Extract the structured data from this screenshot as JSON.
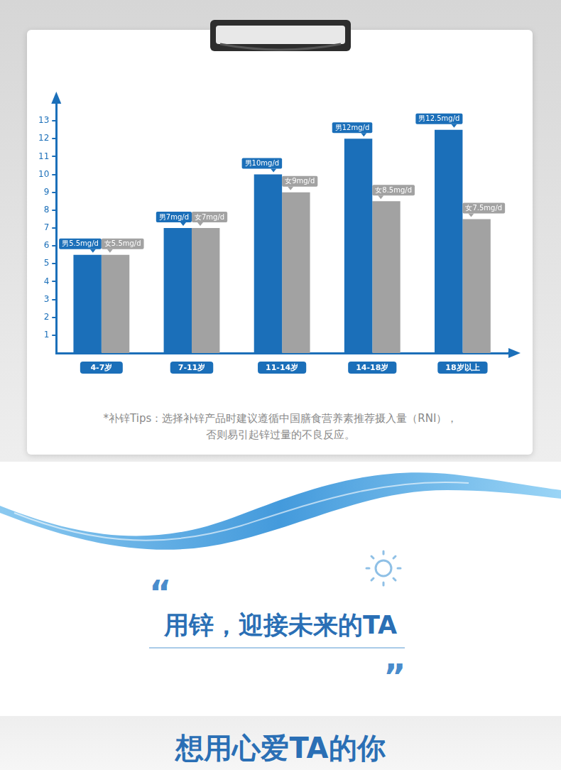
{
  "chart_data": {
    "type": "bar",
    "categories": [
      "4-7岁",
      "7-11岁",
      "11-14岁",
      "14-18岁",
      "18岁以上"
    ],
    "series": [
      {
        "color": "#1b6fb9",
        "values": [
          5.5,
          7,
          10,
          12,
          12.5
        ],
        "value_labels": [
          "男5.5mg/d",
          "男7mg/d",
          "男10mg/d",
          "男12mg/d",
          "男12.5mg/d"
        ]
      },
      {
        "color": "#a2a2a2",
        "values": [
          5.5,
          7,
          9,
          8.5,
          7.5
        ],
        "value_labels": [
          "女5.5mg/d",
          "女7mg/d",
          "女9mg/d",
          "女8.5mg/d",
          "女7.5mg/d"
        ]
      }
    ],
    "ylim": [
      0,
      14
    ],
    "yticks": [
      1,
      2,
      3,
      4,
      5,
      6,
      7,
      8,
      9,
      10,
      11,
      12,
      13
    ],
    "grid": false,
    "data_labels": true
  },
  "tips": [
    "*补锌Tips：选择补锌产品时建议遵循中国膳食营养素推荐摄入量（RNI），",
    "否则易引起锌过量的不良反应。"
  ],
  "quotes": [
    "“",
    "”"
  ],
  "slogan": "用锌，迎接未来的TA",
  "heading": "想用心爱TA的你"
}
